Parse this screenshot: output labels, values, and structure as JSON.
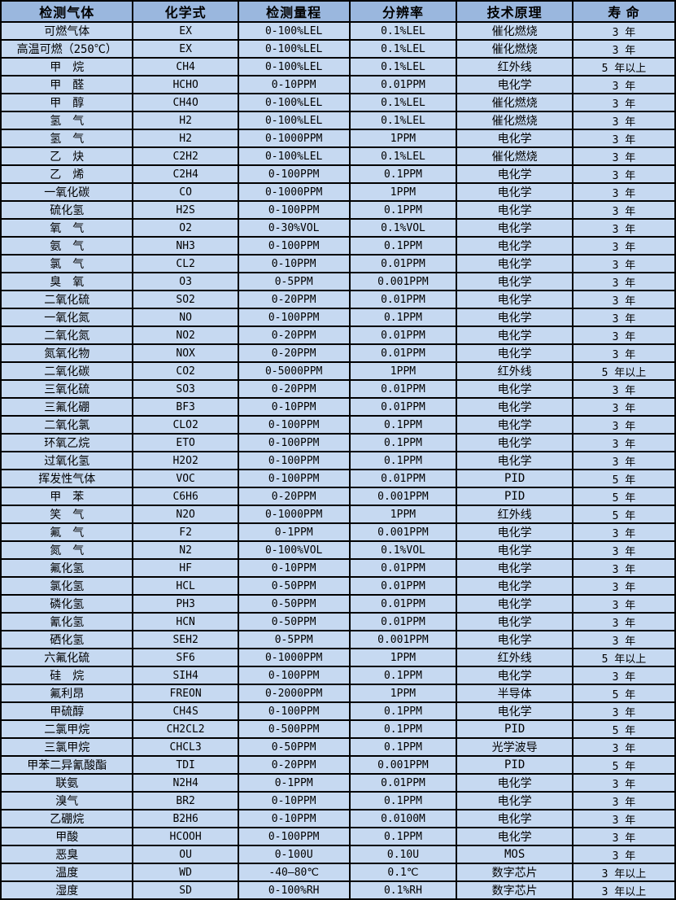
{
  "colors": {
    "header_bg": "#9ab7de",
    "row_bg": "#c6d9f1",
    "border": "#000000",
    "text": "#000000"
  },
  "table": {
    "headers": [
      "检测气体",
      "化学式",
      "检测量程",
      "分辨率",
      "技术原理",
      "寿 命"
    ],
    "rows": [
      [
        "可燃气体",
        "EX",
        "0-100%LEL",
        "0.1%LEL",
        "催化燃烧",
        "3 年"
      ],
      [
        "高温可燃（250℃）",
        "EX",
        "0-100%LEL",
        "0.1%LEL",
        "催化燃烧",
        "3 年"
      ],
      [
        "甲　烷",
        "CH4",
        "0-100%LEL",
        "0.1%LEL",
        "红外线",
        "5 年以上"
      ],
      [
        "甲　醛",
        "HCHO",
        "0-10PPM",
        "0.01PPM",
        "电化学",
        "3 年"
      ],
      [
        "甲　醇",
        "CH4O",
        "0-100%LEL",
        "0.1%LEL",
        "催化燃烧",
        "3 年"
      ],
      [
        "氢　气",
        "H2",
        "0-100%LEL",
        "0.1%LEL",
        "催化燃烧",
        "3 年"
      ],
      [
        "氢　气",
        "H2",
        "0-1000PPM",
        "1PPM",
        "电化学",
        "3 年"
      ],
      [
        "乙　炔",
        "C2H2",
        "0-100%LEL",
        "0.1%LEL",
        "催化燃烧",
        "3 年"
      ],
      [
        "乙　烯",
        "C2H4",
        "0-100PPM",
        "0.1PPM",
        "电化学",
        "3 年"
      ],
      [
        "一氧化碳",
        "CO",
        "0-1000PPM",
        "1PPM",
        "电化学",
        "3 年"
      ],
      [
        "硫化氢",
        "H2S",
        "0-100PPM",
        "0.1PPM",
        "电化学",
        "3 年"
      ],
      [
        "氧　气",
        "O2",
        "0-30%VOL",
        "0.1%VOL",
        "电化学",
        "3 年"
      ],
      [
        "氨　气",
        "NH3",
        "0-100PPM",
        "0.1PPM",
        "电化学",
        "3 年"
      ],
      [
        "氯　气",
        "CL2",
        "0-10PPM",
        "0.01PPM",
        "电化学",
        "3 年"
      ],
      [
        "臭　氧",
        "O3",
        "0-5PPM",
        "0.001PPM",
        "电化学",
        "3 年"
      ],
      [
        "二氧化硫",
        "SO2",
        "0-20PPM",
        "0.01PPM",
        "电化学",
        "3 年"
      ],
      [
        "一氧化氮",
        "NO",
        "0-100PPM",
        "0.1PPM",
        "电化学",
        "3 年"
      ],
      [
        "二氧化氮",
        "NO2",
        "0-20PPM",
        "0.01PPM",
        "电化学",
        "3 年"
      ],
      [
        "氮氧化物",
        "NOX",
        "0-20PPM",
        "0.01PPM",
        "电化学",
        "3 年"
      ],
      [
        "二氧化碳",
        "CO2",
        "0-5000PPM",
        "1PPM",
        "红外线",
        "5 年以上"
      ],
      [
        "三氧化硫",
        "SO3",
        "0-20PPM",
        "0.01PPM",
        "电化学",
        "3 年"
      ],
      [
        "三氟化硼",
        "BF3",
        "0-10PPM",
        "0.01PPM",
        "电化学",
        "3 年"
      ],
      [
        "二氧化氯",
        "CLO2",
        "0-100PPM",
        "0.1PPM",
        "电化学",
        "3 年"
      ],
      [
        "环氧乙烷",
        "ETO",
        "0-100PPM",
        "0.1PPM",
        "电化学",
        "3 年"
      ],
      [
        "过氧化氢",
        "H2O2",
        "0-100PPM",
        "0.1PPM",
        "电化学",
        "3 年"
      ],
      [
        "挥发性气体",
        "VOC",
        "0-100PPM",
        "0.01PPM",
        "PID",
        "5 年"
      ],
      [
        "甲　苯",
        "C6H6",
        "0-20PPM",
        "0.001PPM",
        "PID",
        "5 年"
      ],
      [
        "笑　气",
        "N2O",
        "0-1000PPM",
        "1PPM",
        "红外线",
        "5 年"
      ],
      [
        "氟　气",
        "F2",
        "0-1PPM",
        "0.001PPM",
        "电化学",
        "3 年"
      ],
      [
        "氮　气",
        "N2",
        "0-100%VOL",
        "0.1%VOL",
        "电化学",
        "3 年"
      ],
      [
        "氟化氢",
        "HF",
        "0-10PPM",
        "0.01PPM",
        "电化学",
        "3 年"
      ],
      [
        "氯化氢",
        "HCL",
        "0-50PPM",
        "0.01PPM",
        "电化学",
        "3 年"
      ],
      [
        "磷化氢",
        "PH3",
        "0-50PPM",
        "0.01PPM",
        "电化学",
        "3 年"
      ],
      [
        "氰化氢",
        "HCN",
        "0-50PPM",
        "0.01PPM",
        "电化学",
        "3 年"
      ],
      [
        "硒化氢",
        "SEH2",
        "0-5PPM",
        "0.001PPM",
        "电化学",
        "3 年"
      ],
      [
        "六氟化硫",
        "SF6",
        "0-1000PPM",
        "1PPM",
        "红外线",
        "5 年以上"
      ],
      [
        "硅　烷",
        "SIH4",
        "0-100PPM",
        "0.1PPM",
        "电化学",
        "3 年"
      ],
      [
        "氟利昂",
        "FREON",
        "0-2000PPM",
        "1PPM",
        "半导体",
        "5 年"
      ],
      [
        "甲硫醇",
        "CH4S",
        "0-100PPM",
        "0.1PPM",
        "电化学",
        "3 年"
      ],
      [
        "二氯甲烷",
        "CH2CL2",
        "0-500PPM",
        "0.1PPM",
        "PID",
        "5 年"
      ],
      [
        "三氯甲烷",
        "CHCL3",
        "0-50PPM",
        "0.1PPM",
        "光学波导",
        "3 年"
      ],
      [
        "甲苯二异氰酸酯",
        "TDI",
        "0-20PPM",
        "0.001PPM",
        "PID",
        "5 年"
      ],
      [
        "联氨",
        "N2H4",
        "0-1PPM",
        "0.01PPM",
        "电化学",
        "3 年"
      ],
      [
        "溴气",
        "BR2",
        "0-10PPM",
        "0.1PPM",
        "电化学",
        "3 年"
      ],
      [
        "乙硼烷",
        "B2H6",
        "0-10PPM",
        "0.0100M",
        "电化学",
        "3 年"
      ],
      [
        "甲酸",
        "HCOOH",
        "0-100PPM",
        "0.1PPM",
        "电化学",
        "3 年"
      ],
      [
        "恶臭",
        "OU",
        "0-100U",
        "0.10U",
        "MOS",
        "3 年"
      ],
      [
        "温度",
        "WD",
        "-40—80℃",
        "0.1℃",
        "数字芯片",
        "3 年以上"
      ],
      [
        "湿度",
        "SD",
        "0-100%RH",
        "0.1%RH",
        "数字芯片",
        "3 年以上"
      ]
    ]
  }
}
